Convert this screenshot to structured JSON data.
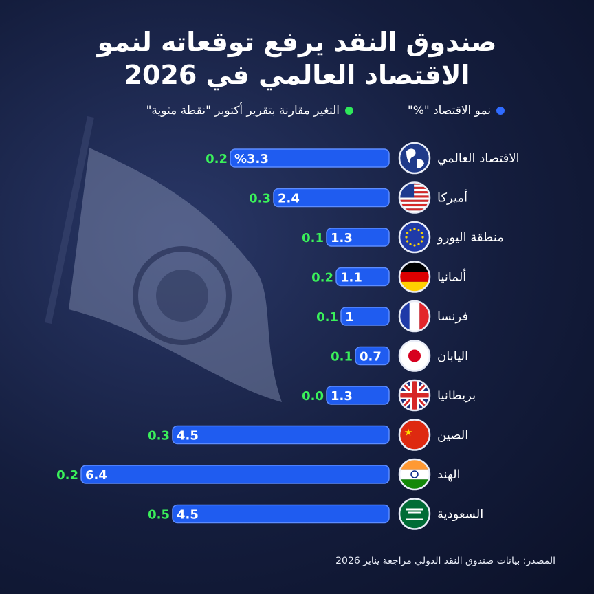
{
  "title": {
    "line1": "صندوق النقد يرفع توقعاته لنمو",
    "line2": "الاقتصاد العالمي في 2026"
  },
  "legend": {
    "growth": "نمو الاقتصاد \"%\"",
    "change": "التغير مقارنة بتقرير أكتوبر \"نقطة مئوية\"",
    "growth_color": "#2f6bff",
    "change_color": "#2ee85a"
  },
  "source": "المصدر: بيانات صندوق النقد الدولي مراجعة يناير 2026",
  "chart_data": {
    "type": "bar",
    "orientation": "horizontal",
    "categories": [
      "الاقتصاد العالمي",
      "أميركا",
      "منطقة اليورو",
      "ألمانيا",
      "فرنسا",
      "اليابان",
      "بريطانيا",
      "الصين",
      "الهند",
      "السعودية"
    ],
    "icons": [
      "globe-icon",
      "us-flag-icon",
      "eu-flag-icon",
      "germany-flag-icon",
      "france-flag-icon",
      "japan-flag-icon",
      "uk-flag-icon",
      "china-flag-icon",
      "india-flag-icon",
      "saudi-flag-icon"
    ],
    "series": [
      {
        "name": "نمو الاقتصاد \"%\"",
        "values": [
          3.3,
          2.4,
          1.3,
          1.1,
          1,
          0.7,
          1.3,
          4.5,
          6.4,
          4.5
        ],
        "labels": [
          "%3.3",
          "2.4",
          "1.3",
          "1.1",
          "1",
          "0.7",
          "1.3",
          "4.5",
          "6.4",
          "4.5"
        ]
      },
      {
        "name": "التغير مقارنة بتقرير أكتوبر \"نقطة مئوية\"",
        "values": [
          0.2,
          0.3,
          0.1,
          0.2,
          0.1,
          0.1,
          0.0,
          0.3,
          0.2,
          0.5
        ],
        "labels": [
          "0.2",
          "0.3",
          "0.1",
          "0.2",
          "0.1",
          "0.1",
          "0.0",
          "0.3",
          "0.2",
          "0.5"
        ]
      }
    ],
    "bar_color": "#1f5cf0",
    "change_label_color": "#3af05a"
  }
}
